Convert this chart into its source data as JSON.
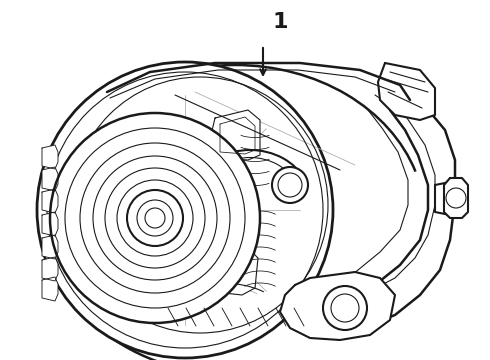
{
  "background_color": "#ffffff",
  "line_color": "#1a1a1a",
  "gray_color": "#aaaaaa",
  "lw_main": 1.5,
  "lw_detail": 0.8,
  "lw_gray": 0.6,
  "label_text": "1",
  "fig_width": 4.9,
  "fig_height": 3.6,
  "dpi": 100
}
